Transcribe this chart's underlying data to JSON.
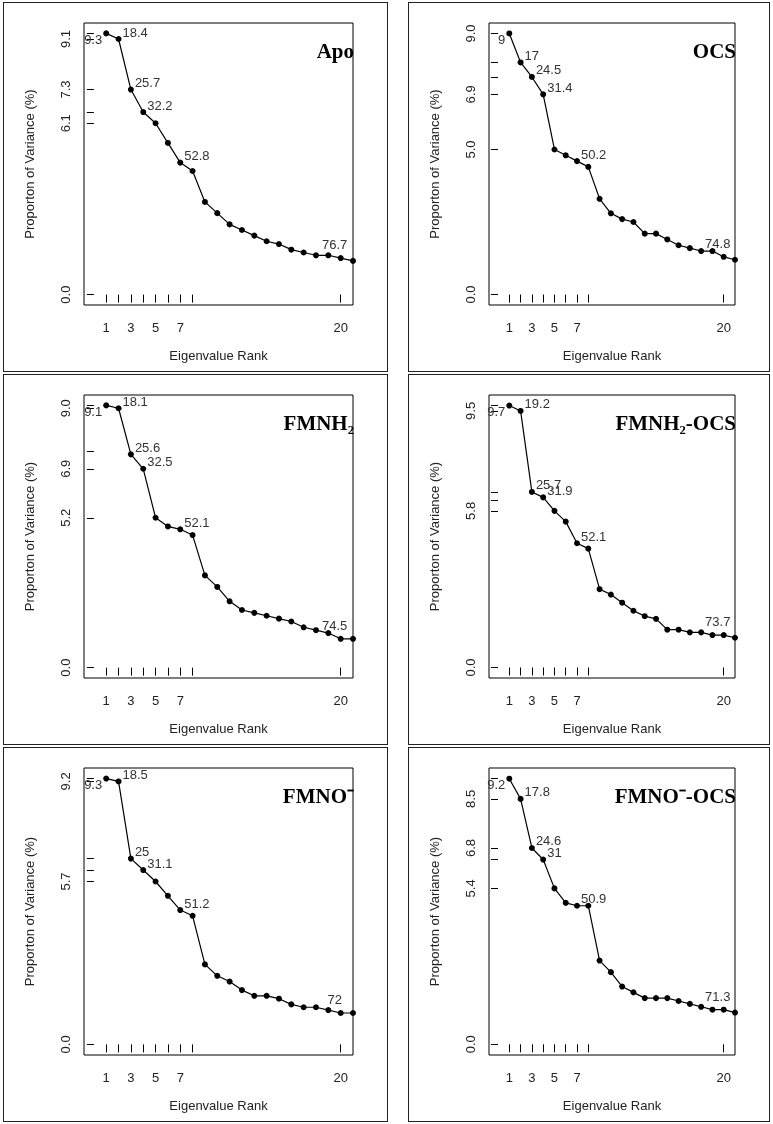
{
  "chart_data": [
    {
      "type": "line",
      "title": "Apo",
      "xlabel": "Eigenvalue Rank",
      "ylabel": "Proporton of Variance (%)",
      "color": "#000000",
      "marker": "circle",
      "x": [
        1,
        2,
        3,
        4,
        5,
        6,
        7,
        8,
        9,
        10,
        11,
        12,
        13,
        14,
        15,
        16,
        17,
        18,
        19,
        20,
        21
      ],
      "values": [
        9.3,
        9.1,
        7.3,
        6.5,
        6.1,
        5.4,
        4.7,
        4.4,
        3.3,
        2.9,
        2.5,
        2.3,
        2.1,
        1.9,
        1.8,
        1.6,
        1.5,
        1.4,
        1.4,
        1.3,
        1.2
      ],
      "annotations": [
        {
          "text": "9.3",
          "x": 1,
          "y": 9.3
        },
        {
          "text": "18.4",
          "x": 2,
          "y": 9.1
        },
        {
          "text": "25.7",
          "x": 3,
          "y": 7.3
        },
        {
          "text": "32.2",
          "x": 4,
          "y": 6.5
        },
        {
          "text": "52.8",
          "x": 7,
          "y": 4.7
        },
        {
          "text": "76.7",
          "x": 20,
          "y": 1.3
        }
      ],
      "xlim": [
        -0.8,
        21
      ],
      "ylim": [
        -0.37,
        9.67
      ],
      "xticks": [
        1,
        {
          "value": 2,
          "label": null
        },
        3,
        {
          "value": 4,
          "label": null
        },
        5,
        {
          "value": 6,
          "label": null
        },
        7,
        {
          "value": 8,
          "label": null
        },
        20
      ],
      "yticks": [
        {
          "value": 0,
          "label": "0.0"
        },
        6.1,
        {
          "value": 6.5,
          "label": null
        },
        7.3,
        9.1,
        {
          "value": 9.3,
          "label": null
        }
      ]
    },
    {
      "type": "line",
      "title": "OCS",
      "xlabel": "Eigenvalue Rank",
      "ylabel": "Proporton of Variance (%)",
      "color": "#000000",
      "marker": "circle",
      "x": [
        1,
        2,
        3,
        4,
        5,
        6,
        7,
        8,
        9,
        10,
        11,
        12,
        13,
        14,
        15,
        16,
        17,
        18,
        19,
        20,
        21
      ],
      "values": [
        9.0,
        8.0,
        7.5,
        6.9,
        5.0,
        4.8,
        4.6,
        4.4,
        3.3,
        2.8,
        2.6,
        2.5,
        2.1,
        2.1,
        1.9,
        1.7,
        1.6,
        1.5,
        1.5,
        1.3,
        1.2
      ],
      "annotations": [
        {
          "text": "9",
          "x": 1,
          "y": 9.0
        },
        {
          "text": "17",
          "x": 2,
          "y": 8.0
        },
        {
          "text": "24.5",
          "x": 3,
          "y": 7.5
        },
        {
          "text": "31.4",
          "x": 4,
          "y": 6.9
        },
        {
          "text": "50.2",
          "x": 7,
          "y": 4.6
        },
        {
          "text": "74.8",
          "x": 20,
          "y": 1.3
        }
      ],
      "xlim": [
        -0.8,
        21
      ],
      "ylim": [
        -0.36,
        9.36
      ],
      "xticks": [
        1,
        {
          "value": 2,
          "label": null
        },
        3,
        {
          "value": 4,
          "label": null
        },
        5,
        {
          "value": 6,
          "label": null
        },
        7,
        {
          "value": 8,
          "label": null
        },
        20
      ],
      "yticks": [
        {
          "value": 0,
          "label": "0.0"
        },
        {
          "value": 5,
          "label": "5.0"
        },
        6.9,
        {
          "value": 7.5,
          "label": null
        },
        {
          "value": 8,
          "label": null
        },
        {
          "value": 9,
          "label": "9.0"
        }
      ]
    },
    {
      "type": "line",
      "title": "FMNH₂",
      "xlabel": "Eigenvalue Rank",
      "ylabel": "Proporton of Variance (%)",
      "color": "#000000",
      "marker": "circle",
      "x": [
        1,
        2,
        3,
        4,
        5,
        6,
        7,
        8,
        9,
        10,
        11,
        12,
        13,
        14,
        15,
        16,
        17,
        18,
        19,
        20,
        21
      ],
      "values": [
        9.1,
        9.0,
        7.4,
        6.9,
        5.2,
        4.9,
        4.8,
        4.6,
        3.2,
        2.8,
        2.3,
        2.0,
        1.9,
        1.8,
        1.7,
        1.6,
        1.4,
        1.3,
        1.2,
        1.0,
        1.0
      ],
      "annotations": [
        {
          "text": "9.1",
          "x": 1,
          "y": 9.1
        },
        {
          "text": "18.1",
          "x": 2,
          "y": 9.0
        },
        {
          "text": "25.6",
          "x": 3,
          "y": 7.4
        },
        {
          "text": "32.5",
          "x": 4,
          "y": 6.9
        },
        {
          "text": "52.1",
          "x": 7,
          "y": 4.8
        },
        {
          "text": "74.5",
          "x": 20,
          "y": 1.0
        }
      ],
      "xlim": [
        -0.8,
        21
      ],
      "ylim": [
        -0.36,
        9.46
      ],
      "xticks": [
        1,
        {
          "value": 2,
          "label": null
        },
        3,
        {
          "value": 4,
          "label": null
        },
        5,
        {
          "value": 6,
          "label": null
        },
        7,
        {
          "value": 8,
          "label": null
        },
        20
      ],
      "yticks": [
        {
          "value": 0,
          "label": "0.0"
        },
        5.2,
        6.9,
        {
          "value": 7.5,
          "label": null
        },
        {
          "value": 9,
          "label": "9.0"
        },
        {
          "value": 9.1,
          "label": null
        }
      ]
    },
    {
      "type": "line",
      "title": "FMNH₂-OCS",
      "xlabel": "Eigenvalue Rank",
      "ylabel": "Proporton of Variance (%)",
      "color": "#000000",
      "marker": "circle",
      "x": [
        1,
        2,
        3,
        4,
        5,
        6,
        7,
        8,
        9,
        10,
        11,
        12,
        13,
        14,
        15,
        16,
        17,
        18,
        19,
        20,
        21
      ],
      "values": [
        9.7,
        9.5,
        6.5,
        6.3,
        5.8,
        5.4,
        4.6,
        4.4,
        2.9,
        2.7,
        2.4,
        2.1,
        1.9,
        1.8,
        1.4,
        1.4,
        1.3,
        1.3,
        1.2,
        1.2,
        1.1
      ],
      "annotations": [
        {
          "text": "9.7",
          "x": 1,
          "y": 9.7
        },
        {
          "text": "19.2",
          "x": 2,
          "y": 9.5
        },
        {
          "text": "25.7",
          "x": 3,
          "y": 6.5
        },
        {
          "text": "31.9",
          "x": 4,
          "y": 6.3
        },
        {
          "text": "52.1",
          "x": 7,
          "y": 4.6
        },
        {
          "text": "73.7",
          "x": 20,
          "y": 1.2
        }
      ],
      "xlim": [
        -0.8,
        21
      ],
      "ylim": [
        -0.39,
        10.09
      ],
      "xticks": [
        1,
        {
          "value": 2,
          "label": null
        },
        3,
        {
          "value": 4,
          "label": null
        },
        5,
        {
          "value": 6,
          "label": null
        },
        7,
        {
          "value": 8,
          "label": null
        },
        20
      ],
      "yticks": [
        {
          "value": 0,
          "label": "0.0"
        },
        5.8,
        {
          "value": 6.2,
          "label": null
        },
        {
          "value": 6.5,
          "label": null
        },
        9.5,
        {
          "value": 9.7,
          "label": null
        }
      ]
    },
    {
      "type": "line",
      "title": "FMNO⁻",
      "xlabel": "Eigenvalue Rank",
      "ylabel": "Proporton of Variance (%)",
      "color": "#000000",
      "marker": "circle",
      "x": [
        1,
        2,
        3,
        4,
        5,
        6,
        7,
        8,
        9,
        10,
        11,
        12,
        13,
        14,
        15,
        16,
        17,
        18,
        19,
        20,
        21
      ],
      "values": [
        9.3,
        9.2,
        6.5,
        6.1,
        5.7,
        5.2,
        4.7,
        4.5,
        2.8,
        2.4,
        2.2,
        1.9,
        1.7,
        1.7,
        1.6,
        1.4,
        1.3,
        1.3,
        1.2,
        1.1,
        1.1
      ],
      "annotations": [
        {
          "text": "9.3",
          "x": 1,
          "y": 9.3
        },
        {
          "text": "18.5",
          "x": 2,
          "y": 9.2
        },
        {
          "text": "25",
          "x": 3,
          "y": 6.5
        },
        {
          "text": "31.1",
          "x": 4,
          "y": 6.1
        },
        {
          "text": "51.2",
          "x": 7,
          "y": 4.7
        },
        {
          "text": "72",
          "x": 20,
          "y": 1.1
        }
      ],
      "xlim": [
        -0.8,
        21
      ],
      "ylim": [
        -0.37,
        9.67
      ],
      "xticks": [
        1,
        {
          "value": 2,
          "label": null
        },
        3,
        {
          "value": 4,
          "label": null
        },
        5,
        {
          "value": 6,
          "label": null
        },
        7,
        {
          "value": 8,
          "label": null
        },
        20
      ],
      "yticks": [
        {
          "value": 0,
          "label": "0.0"
        },
        5.7,
        {
          "value": 6.1,
          "label": null
        },
        {
          "value": 6.5,
          "label": null
        },
        9.2,
        {
          "value": 9.3,
          "label": null
        }
      ]
    },
    {
      "type": "line",
      "title": "FMNO⁻-OCS",
      "xlabel": "Eigenvalue Rank",
      "ylabel": "Proporton of Variance (%)",
      "color": "#000000",
      "marker": "circle",
      "x": [
        1,
        2,
        3,
        4,
        5,
        6,
        7,
        8,
        9,
        10,
        11,
        12,
        13,
        14,
        15,
        16,
        17,
        18,
        19,
        20,
        21
      ],
      "values": [
        9.2,
        8.5,
        6.8,
        6.4,
        5.4,
        4.9,
        4.8,
        4.8,
        2.9,
        2.5,
        2.0,
        1.8,
        1.6,
        1.6,
        1.6,
        1.5,
        1.4,
        1.3,
        1.2,
        1.2,
        1.1
      ],
      "annotations": [
        {
          "text": "9.2",
          "x": 1,
          "y": 9.2
        },
        {
          "text": "17.8",
          "x": 2,
          "y": 8.5
        },
        {
          "text": "24.6",
          "x": 3,
          "y": 6.8
        },
        {
          "text": "31",
          "x": 4,
          "y": 6.4
        },
        {
          "text": "50.9",
          "x": 7,
          "y": 4.8
        },
        {
          "text": "71.3",
          "x": 20,
          "y": 1.2
        }
      ],
      "xlim": [
        -0.8,
        21
      ],
      "ylim": [
        -0.37,
        9.57
      ],
      "xticks": [
        1,
        {
          "value": 2,
          "label": null
        },
        3,
        {
          "value": 4,
          "label": null
        },
        5,
        {
          "value": 6,
          "label": null
        },
        7,
        {
          "value": 8,
          "label": null
        },
        20
      ],
      "yticks": [
        {
          "value": 0,
          "label": "0.0"
        },
        5.4,
        {
          "value": 6.4,
          "label": null
        },
        6.8,
        8.5,
        {
          "value": 9.2,
          "label": null
        }
      ]
    }
  ]
}
